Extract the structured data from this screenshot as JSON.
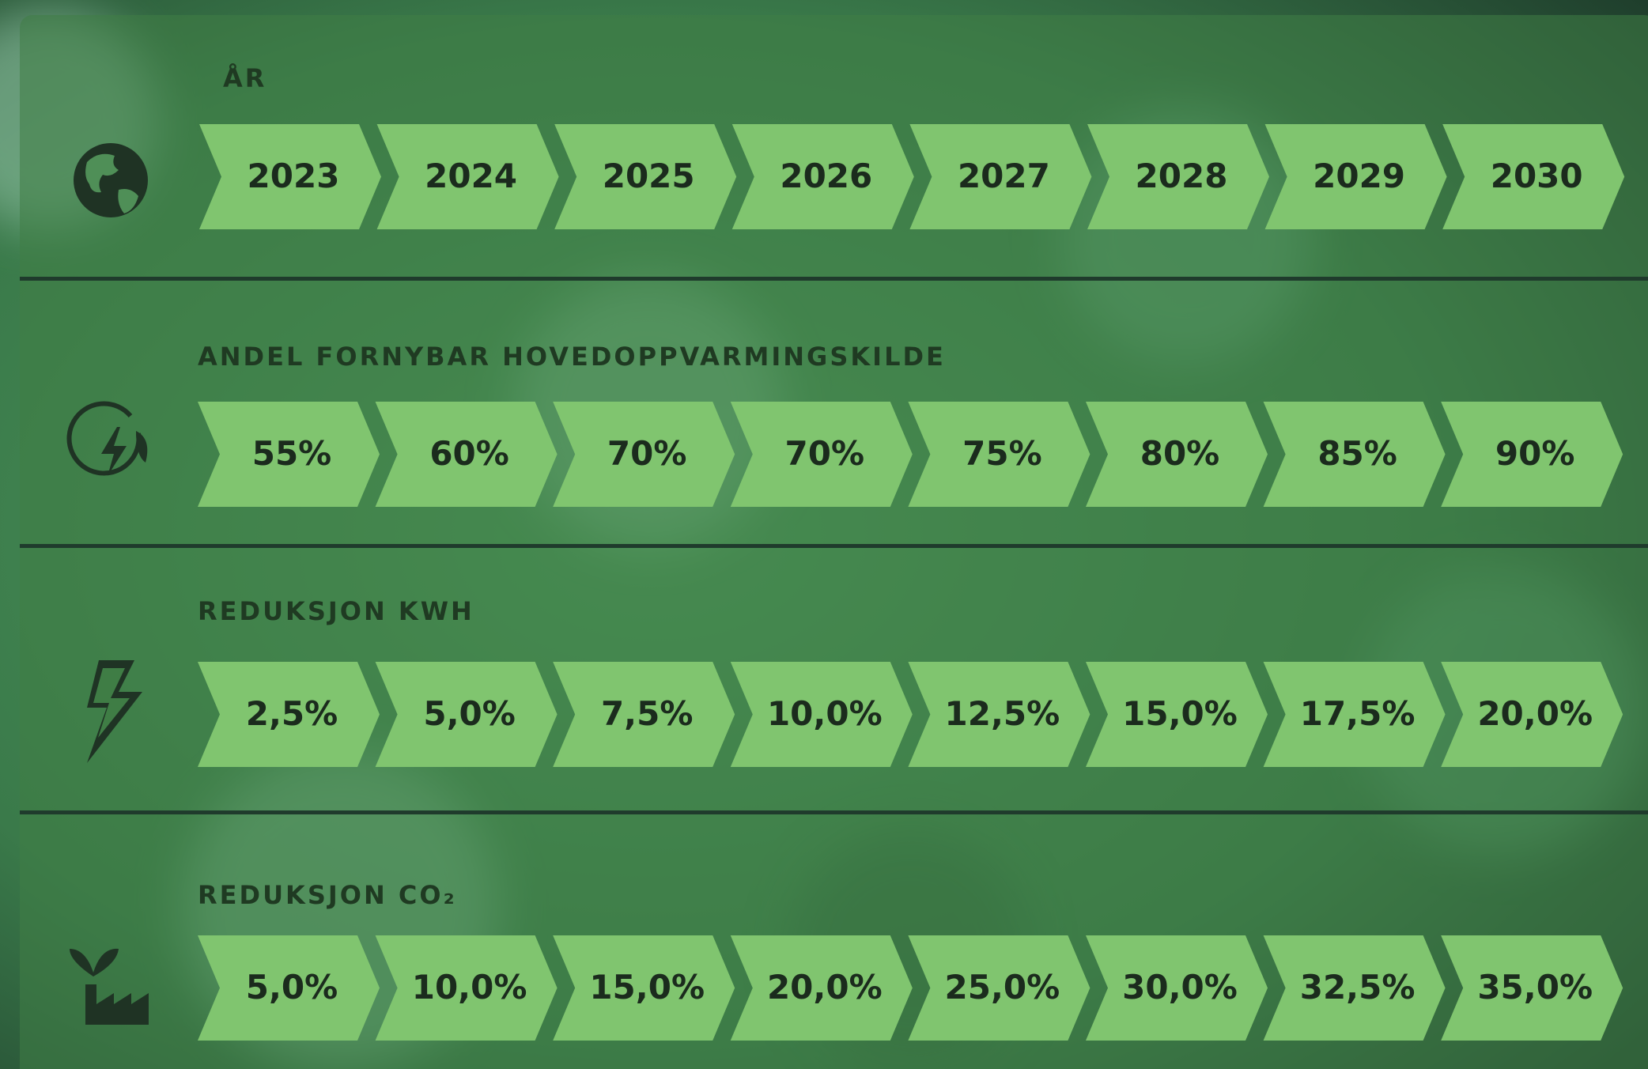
{
  "rows": [
    {
      "title": "ÅR",
      "cells": [
        "2023",
        "2024",
        "2025",
        "2026",
        "2027",
        "2028",
        "2029",
        "2030"
      ]
    },
    {
      "title": "ANDEL FORNYBAR HOVEDOPPVARMINGSKILDE",
      "cells": [
        "55%",
        "60%",
        "70%",
        "70%",
        "75%",
        "80%",
        "85%",
        "90%"
      ]
    },
    {
      "title": "REDUKSJON KWH",
      "cells": [
        "2,5%",
        "5,0%",
        "7,5%",
        "10,0%",
        "12,5%",
        "15,0%",
        "17,5%",
        "20,0%"
      ]
    },
    {
      "title": "REDUKSJON CO₂",
      "cells": [
        "5,0%",
        "10,0%",
        "15,0%",
        "20,0%",
        "25,0%",
        "30,0%",
        "32,5%",
        "35,0%"
      ]
    }
  ]
}
